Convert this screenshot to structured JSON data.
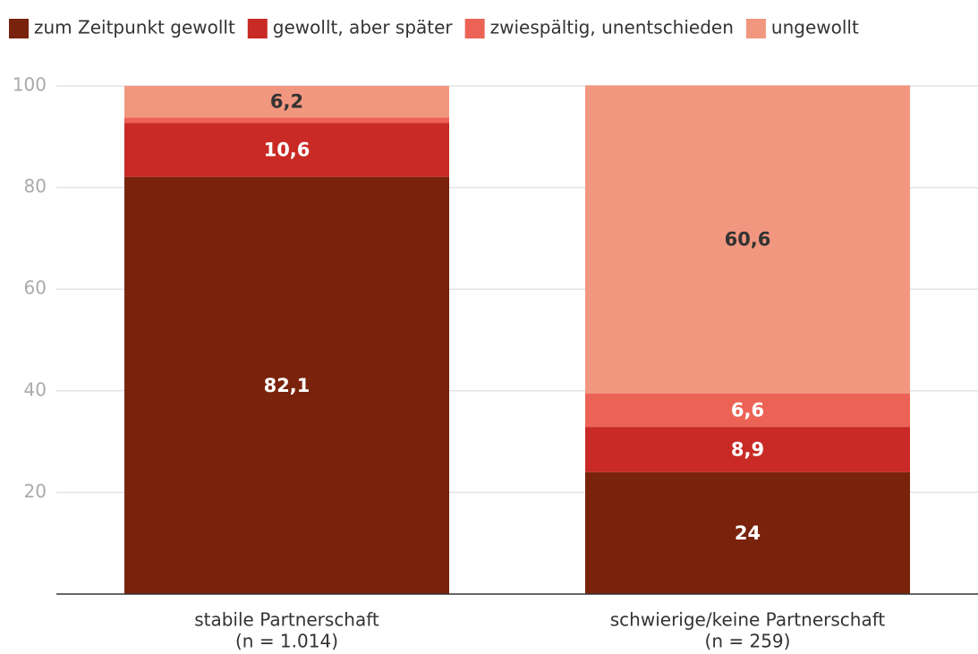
{
  "chart_data": {
    "type": "stacked_bar",
    "categories": [
      [
        "stabile Partnerschaft",
        "(n = 1.014)"
      ],
      [
        "schwierige/keine Partnerschaft",
        "(n = 259)"
      ]
    ],
    "series": [
      {
        "name": "zum Zeitpunkt gewollt",
        "color": "#7a230c",
        "values": [
          82.1,
          24
        ],
        "value_labels": [
          "82,1",
          "24"
        ]
      },
      {
        "name": "gewollt, aber später",
        "color": "#c92a25",
        "values": [
          10.6,
          8.9
        ],
        "value_labels": [
          "10,6",
          "8,9"
        ]
      },
      {
        "name": "zwiespältig, unentschieden",
        "color": "#ec6356",
        "values": [
          1.1,
          6.6
        ],
        "value_labels": [
          null,
          "6,6"
        ]
      },
      {
        "name": "ungewollt",
        "color": "#f2977f",
        "values": [
          6.2,
          60.6
        ],
        "value_labels": [
          "6,2",
          "60,6"
        ]
      }
    ],
    "ylim": [
      0,
      100
    ],
    "yticks": [
      20,
      40,
      60,
      80,
      100
    ],
    "grid": true,
    "legend": "top"
  }
}
